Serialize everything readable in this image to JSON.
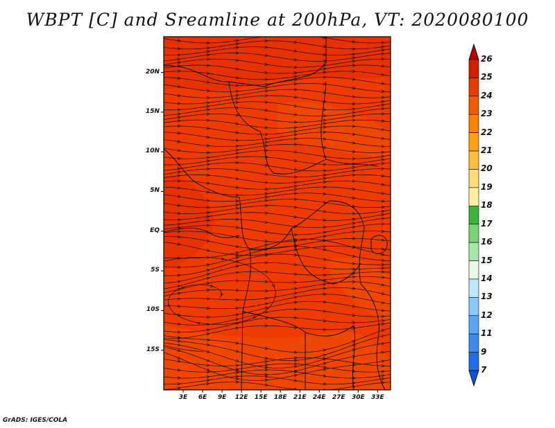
{
  "title": "WBPT [C] and Sreamline at 200hPa, VT: 2020080100",
  "footer": "GrADS: IGES/COLA",
  "map": {
    "lat_ticks": [
      {
        "label": "20N",
        "value": 20
      },
      {
        "label": "15N",
        "value": 15
      },
      {
        "label": "10N",
        "value": 10
      },
      {
        "label": "5N",
        "value": 5
      },
      {
        "label": "EQ",
        "value": 0
      },
      {
        "label": "5S",
        "value": -5
      },
      {
        "label": "10S",
        "value": -10
      },
      {
        "label": "15S",
        "value": -15
      }
    ],
    "lon_ticks": [
      {
        "label": "3E",
        "value": 3
      },
      {
        "label": "6E",
        "value": 6
      },
      {
        "label": "9E",
        "value": 9
      },
      {
        "label": "12E",
        "value": 12
      },
      {
        "label": "15E",
        "value": 15
      },
      {
        "label": "18E",
        "value": 18
      },
      {
        "label": "21E",
        "value": 21
      },
      {
        "label": "24E",
        "value": 24
      },
      {
        "label": "27E",
        "value": 27
      },
      {
        "label": "30E",
        "value": 30
      },
      {
        "label": "33E",
        "value": 33
      }
    ],
    "lat_range": [
      -20,
      24.5
    ],
    "lon_range": [
      0,
      35
    ]
  },
  "colorbar": {
    "labels": [
      "26",
      "25",
      "24",
      "23",
      "22",
      "21",
      "20",
      "19",
      "18",
      "17",
      "16",
      "15",
      "14",
      "13",
      "12",
      "11",
      "9",
      "7"
    ],
    "colors": [
      "#b40000",
      "#d21e00",
      "#e63c00",
      "#f05a00",
      "#fa8200",
      "#ffa014",
      "#ffbe3c",
      "#ffdc78",
      "#fff0a0",
      "#3cb43c",
      "#78d278",
      "#aae6aa",
      "#e6fae6",
      "#bee6ff",
      "#8cc8ff",
      "#5aa5f5",
      "#3c8cf0",
      "#1e6ee6",
      "#1450d2"
    ]
  },
  "field": {
    "base_color": "#ee3c00",
    "warm_color": "#e02800",
    "cool_color": "#f25000"
  }
}
